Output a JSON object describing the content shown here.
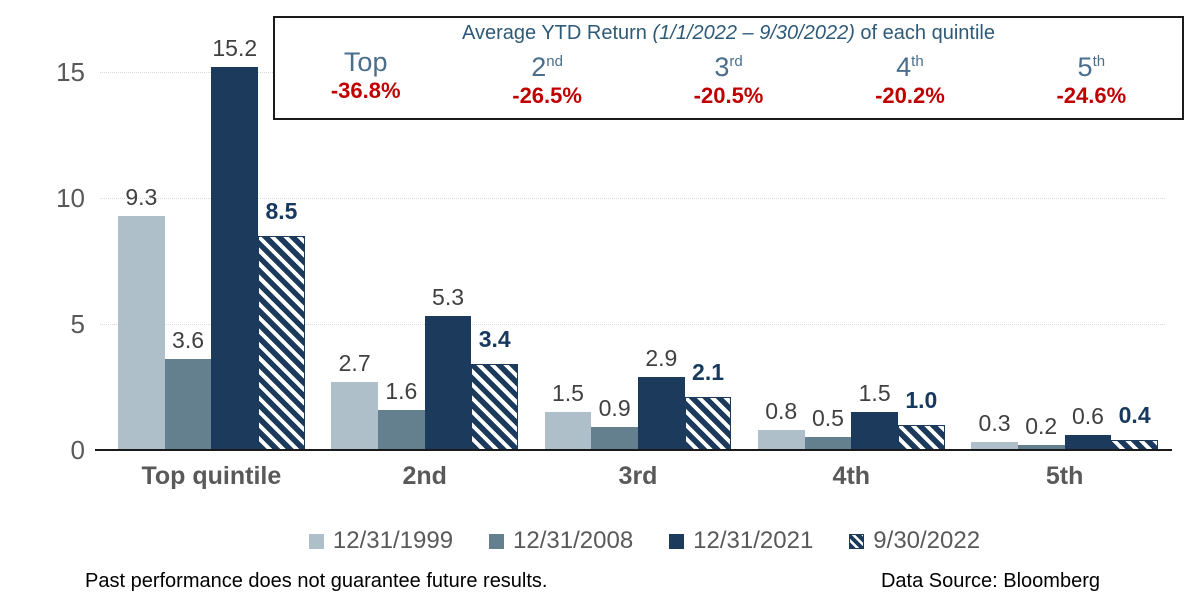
{
  "chart_data": {
    "type": "bar",
    "title": "",
    "categories": [
      "Top quintile",
      "2nd",
      "3rd",
      "4th",
      "5th"
    ],
    "series": [
      {
        "name": "12/31/1999",
        "color": "#aebfca",
        "pattern": "solid",
        "values": [
          9.3,
          2.7,
          1.5,
          0.8,
          0.3
        ]
      },
      {
        "name": "12/31/2008",
        "color": "#64808f",
        "pattern": "solid",
        "values": [
          3.6,
          1.6,
          0.9,
          0.5,
          0.2
        ]
      },
      {
        "name": "12/31/2021",
        "color": "#1b3a5c",
        "pattern": "solid",
        "values": [
          15.2,
          5.3,
          2.9,
          1.5,
          0.6
        ]
      },
      {
        "name": "9/30/2022",
        "color": "#1b3a5c",
        "pattern": "hatch",
        "values": [
          8.5,
          3.4,
          2.1,
          1.0,
          0.4
        ]
      }
    ],
    "y_ticks": [
      0,
      5,
      10,
      15
    ],
    "ylim": [
      0,
      16
    ],
    "xlabel": "",
    "ylabel": "",
    "grid": "horizontal-dotted",
    "legend_position": "bottom",
    "value_labels": true,
    "value_label_color": "#404040",
    "hatch_value_label_color": "#17395e",
    "tick_label_color": "#595959"
  },
  "stats_box": {
    "title_prefix": "Average YTD Return ",
    "title_italic": "(1/1/2022 – 9/30/2022)",
    "title_suffix": " of each quintile",
    "title_color": "#2e5a78",
    "name_color": "#4a6e8c",
    "value_color": "#c00000",
    "quintiles": [
      {
        "name": "Top",
        "sup": "",
        "value": "-36.8%"
      },
      {
        "name": "2",
        "sup": "nd",
        "value": "-26.5%"
      },
      {
        "name": "3",
        "sup": "rd",
        "value": "-20.5%"
      },
      {
        "name": "4",
        "sup": "th",
        "value": "-20.2%"
      },
      {
        "name": "5",
        "sup": "th",
        "value": "-24.6%"
      }
    ]
  },
  "footer": {
    "disclaimer": "Past performance does not guarantee future results.",
    "source": "Data Source: Bloomberg"
  }
}
